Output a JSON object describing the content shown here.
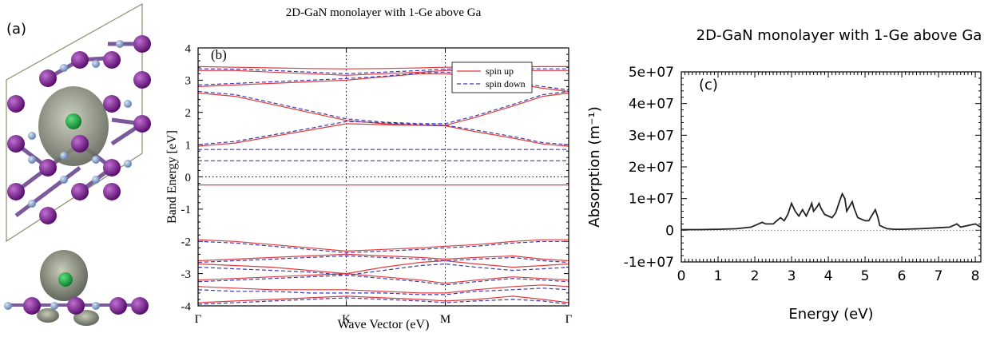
{
  "panel_a": {
    "label": "(a)"
  },
  "chart_data": [
    {
      "type": "band",
      "panel_label": "(b)",
      "title": "2D-GaN monolayer with 1-Ge above Ga",
      "x_label": "Wave Vector (eV)",
      "y_label": "Band Energy [eV]",
      "xlim": [
        0,
        1
      ],
      "ylim": [
        -4,
        4
      ],
      "xticks": [
        {
          "value": 0,
          "label": "Γ"
        },
        {
          "value": 0.4,
          "label": "K"
        },
        {
          "value": 0.667,
          "label": "M"
        },
        {
          "value": 1,
          "label": "Γ"
        }
      ],
      "yticks": [
        -4,
        -3,
        -2,
        -1,
        0,
        1,
        2,
        3,
        4
      ],
      "dotted_xticks": true,
      "zero_line": true,
      "legend": "upper right",
      "x": [
        0,
        0.1,
        0.2,
        0.3,
        0.4,
        0.5,
        0.6,
        0.667,
        0.75,
        0.85,
        0.93,
        1
      ],
      "series": [
        {
          "name": "spin up",
          "color": "#e23b3b",
          "dashed": false,
          "bands": [
            [
              -0.25,
              -0.25,
              -0.25,
              -0.25,
              -0.25,
              -0.25,
              -0.25,
              -0.25,
              -0.25,
              -0.25,
              -0.25,
              -0.25
            ],
            [
              0.95,
              1.05,
              1.25,
              1.45,
              1.65,
              1.62,
              1.6,
              1.58,
              1.4,
              1.2,
              1.02,
              0.95
            ],
            [
              2.6,
              2.5,
              2.25,
              2.0,
              1.75,
              1.65,
              1.6,
              1.6,
              1.85,
              2.2,
              2.5,
              2.6
            ],
            [
              2.8,
              2.85,
              2.9,
              2.95,
              3.0,
              3.1,
              3.2,
              3.2,
              3.1,
              2.9,
              2.75,
              2.65
            ],
            [
              3.3,
              3.3,
              3.25,
              3.2,
              3.15,
              3.2,
              3.25,
              3.3,
              3.3,
              3.3,
              3.3,
              3.3
            ],
            [
              3.42,
              3.4,
              3.38,
              3.36,
              3.35,
              3.36,
              3.38,
              3.4,
              3.4,
              3.41,
              3.42,
              3.42
            ],
            [
              -1.95,
              -2.0,
              -2.1,
              -2.2,
              -2.3,
              -2.25,
              -2.2,
              -2.15,
              -2.1,
              -2.0,
              -1.95,
              -1.95
            ],
            [
              -2.6,
              -2.55,
              -2.5,
              -2.45,
              -2.4,
              -2.45,
              -2.5,
              -2.55,
              -2.5,
              -2.45,
              -2.55,
              -2.6
            ],
            [
              -2.7,
              -2.75,
              -2.8,
              -2.9,
              -3.0,
              -2.8,
              -2.65,
              -2.6,
              -2.7,
              -2.8,
              -2.75,
              -2.7
            ],
            [
              -3.2,
              -3.15,
              -3.1,
              -3.05,
              -3.0,
              -3.1,
              -3.2,
              -3.3,
              -3.2,
              -3.1,
              -3.15,
              -3.2
            ],
            [
              -3.4,
              -3.45,
              -3.5,
              -3.5,
              -3.5,
              -3.55,
              -3.6,
              -3.6,
              -3.5,
              -3.4,
              -3.35,
              -3.4
            ],
            [
              -3.9,
              -3.85,
              -3.8,
              -3.75,
              -3.7,
              -3.75,
              -3.8,
              -3.85,
              -3.8,
              -3.7,
              -3.8,
              -3.9
            ]
          ]
        },
        {
          "name": "spin down",
          "color": "#3a3aa8",
          "dashed": true,
          "bands": [
            [
              0.85,
              0.85,
              0.85,
              0.85,
              0.85,
              0.85,
              0.85,
              0.85,
              0.85,
              0.85,
              0.85,
              0.85
            ],
            [
              0.5,
              0.5,
              0.5,
              0.5,
              0.5,
              0.5,
              0.5,
              0.5,
              0.5,
              0.5,
              0.5,
              0.5
            ],
            [
              1.0,
              1.1,
              1.3,
              1.5,
              1.72,
              1.68,
              1.62,
              1.6,
              1.45,
              1.25,
              1.06,
              1.0
            ],
            [
              2.65,
              2.55,
              2.3,
              2.05,
              1.8,
              1.7,
              1.65,
              1.65,
              1.9,
              2.25,
              2.55,
              2.65
            ],
            [
              2.85,
              2.9,
              2.95,
              3.0,
              3.05,
              3.12,
              3.22,
              3.25,
              3.15,
              2.95,
              2.8,
              2.7
            ],
            [
              3.35,
              3.34,
              3.3,
              3.25,
              3.2,
              3.25,
              3.3,
              3.34,
              3.35,
              3.35,
              3.35,
              3.35
            ],
            [
              -2.0,
              -2.05,
              -2.15,
              -2.25,
              -2.35,
              -2.3,
              -2.25,
              -2.2,
              -2.15,
              -2.05,
              -2.0,
              -2.0
            ],
            [
              -2.65,
              -2.6,
              -2.55,
              -2.5,
              -2.45,
              -2.5,
              -2.55,
              -2.6,
              -2.55,
              -2.5,
              -2.6,
              -2.65
            ],
            [
              -2.8,
              -2.85,
              -2.9,
              -2.95,
              -3.05,
              -2.9,
              -2.75,
              -2.7,
              -2.8,
              -2.9,
              -2.85,
              -2.8
            ],
            [
              -3.25,
              -3.2,
              -3.15,
              -3.1,
              -3.05,
              -3.15,
              -3.25,
              -3.35,
              -3.25,
              -3.15,
              -3.2,
              -3.25
            ],
            [
              -3.5,
              -3.55,
              -3.55,
              -3.6,
              -3.6,
              -3.6,
              -3.65,
              -3.65,
              -3.55,
              -3.5,
              -3.45,
              -3.5
            ],
            [
              -3.95,
              -3.9,
              -3.85,
              -3.8,
              -3.75,
              -3.8,
              -3.85,
              -3.9,
              -3.85,
              -3.8,
              -3.85,
              -3.95
            ]
          ]
        }
      ]
    },
    {
      "type": "line",
      "panel_label": "(c)",
      "title": "2D-GaN monolayer with 1-Ge above Ga",
      "x_label": "Energy (eV)",
      "y_label": "Absorption (m⁻¹)",
      "xlim": [
        0,
        8.15
      ],
      "ylim": [
        -10000000,
        50000000
      ],
      "xticks": [
        0,
        1,
        2,
        3,
        4,
        5,
        6,
        7,
        8
      ],
      "yticks": [
        {
          "value": -10000000,
          "label": "-1e+07"
        },
        0,
        {
          "value": 10000000,
          "label": "1e+07"
        },
        {
          "value": 20000000,
          "label": "2e+07"
        },
        {
          "value": 30000000,
          "label": "3e+07"
        },
        {
          "value": 40000000,
          "label": "4e+07"
        },
        {
          "value": 50000000,
          "label": "5e+07"
        }
      ],
      "zero_line": true,
      "color": "#222222",
      "x": [
        0,
        0.5,
        1,
        1.5,
        1.9,
        2.1,
        2.2,
        2.3,
        2.5,
        2.6,
        2.7,
        2.8,
        2.9,
        3.0,
        3.1,
        3.2,
        3.3,
        3.4,
        3.5,
        3.55,
        3.6,
        3.7,
        3.75,
        3.8,
        3.9,
        4.0,
        4.1,
        4.2,
        4.3,
        4.38,
        4.45,
        4.5,
        4.6,
        4.65,
        4.7,
        4.8,
        4.9,
        5.0,
        5.1,
        5.2,
        5.28,
        5.35,
        5.4,
        5.5,
        5.6,
        5.8,
        6.0,
        6.5,
        7.0,
        7.3,
        7.5,
        7.6,
        7.8,
        8.0,
        8.15
      ],
      "values": [
        200000,
        200000,
        300000,
        500000,
        1000000,
        2000000,
        2500000,
        2000000,
        2000000,
        3000000,
        4000000,
        3000000,
        5000000,
        8500000,
        6000000,
        4500000,
        6500000,
        4500000,
        7000000,
        8500000,
        6000000,
        7500000,
        8500000,
        7000000,
        5000000,
        4500000,
        4000000,
        5500000,
        9000000,
        11500000,
        10000000,
        6000000,
        8000000,
        9000000,
        7000000,
        4000000,
        3500000,
        3000000,
        3000000,
        5000000,
        6500000,
        4000000,
        1500000,
        1000000,
        500000,
        300000,
        300000,
        500000,
        800000,
        1000000,
        2000000,
        1000000,
        1500000,
        2000000,
        1000000
      ]
    }
  ]
}
